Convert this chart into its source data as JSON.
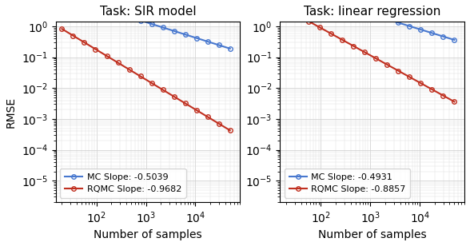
{
  "panel1": {
    "title": "Task: SIR model",
    "mc_slope": -0.5039,
    "rqmc_slope": -0.9682,
    "mc_intercept_log10": 1.65,
    "rqmc_intercept_log10": 1.18,
    "x_start": 20,
    "x_end": 50000,
    "n_points": 16
  },
  "panel2": {
    "title": "Task: linear regression",
    "mc_slope": -0.4931,
    "rqmc_slope": -0.8857,
    "mc_intercept_log10": 1.88,
    "rqmc_intercept_log10": 1.72,
    "x_start": 20,
    "x_end": 50000,
    "n_points": 16
  },
  "xlabel": "Number of samples",
  "ylabel": "RMSE",
  "mc_color": "#4878cf",
  "rqmc_color": "#c03020",
  "legend_loc": "lower left",
  "xlim": [
    15,
    80000
  ],
  "ylim_log": [
    -5.7,
    0.15
  ],
  "marker": "o",
  "markersize": 4.0,
  "linewidth": 1.5,
  "fontsize_title": 11,
  "fontsize_label": 10,
  "fontsize_legend": 8,
  "figsize": [
    5.88,
    3.08
  ],
  "dpi": 100
}
